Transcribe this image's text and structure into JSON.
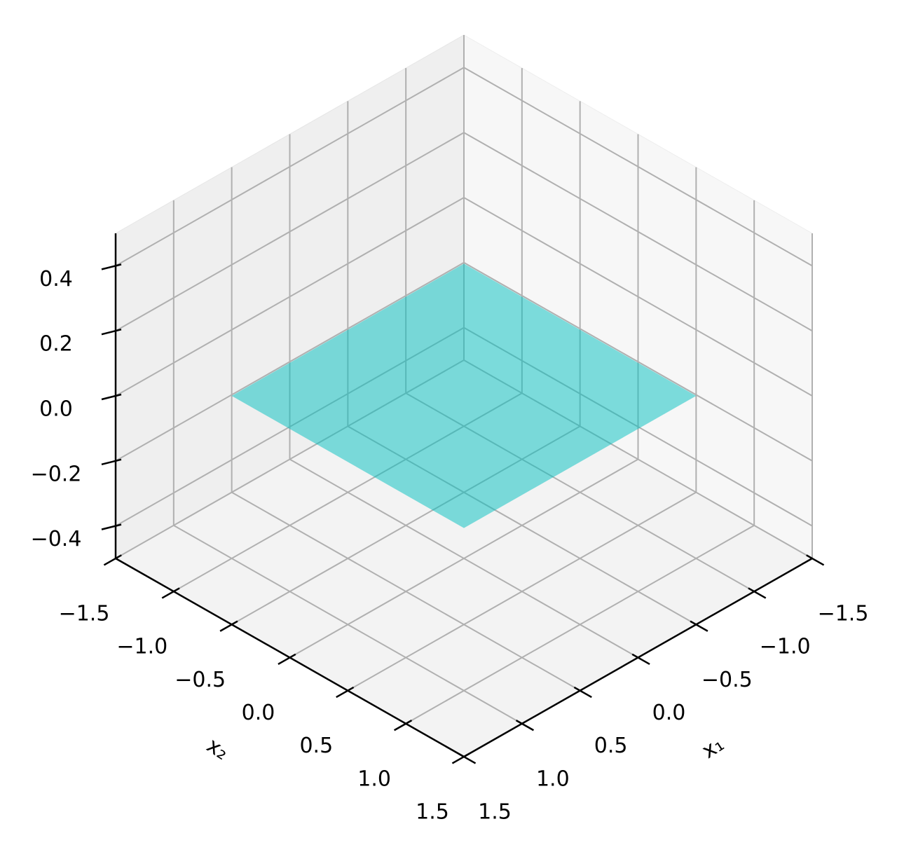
{
  "chart_data": {
    "type": "surface3d",
    "x_label": "x₁",
    "y_label": "x₂",
    "x": [
      -1,
      1
    ],
    "y": [
      -1,
      1
    ],
    "z": [
      [
        0,
        0
      ],
      [
        0,
        0
      ]
    ],
    "color": "#00bfbf",
    "alpha": 0.5,
    "xlim": [
      -1.5,
      1.5
    ],
    "ylim": [
      -1.5,
      1.5
    ],
    "zlim": [
      -0.5,
      0.5
    ],
    "xticks": [
      {
        "value": -1.5,
        "label": "−1.5"
      },
      {
        "value": -1.0,
        "label": "−1.0"
      },
      {
        "value": -0.5,
        "label": "−0.5"
      },
      {
        "value": 0,
        "label": "0.0"
      },
      0.5,
      {
        "value": 1.0,
        "label": "1.0"
      },
      1.5
    ],
    "yticks": [
      {
        "value": -1.5,
        "label": "−1.5"
      },
      {
        "value": -1.0,
        "label": "−1.0"
      },
      {
        "value": -0.5,
        "label": "−0.5"
      },
      {
        "value": 0,
        "label": "0.0"
      },
      0.5,
      {
        "value": 1.0,
        "label": "1.0"
      },
      1.5
    ],
    "zticks": [
      {
        "value": -0.4,
        "label": "−0.4"
      },
      {
        "value": -0.2,
        "label": "−0.2"
      },
      {
        "value": 0,
        "label": "0.0"
      },
      {
        "value": 0.2,
        "label": "0.2"
      },
      {
        "value": 0.4,
        "label": "0.4"
      }
    ],
    "grid": true
  }
}
